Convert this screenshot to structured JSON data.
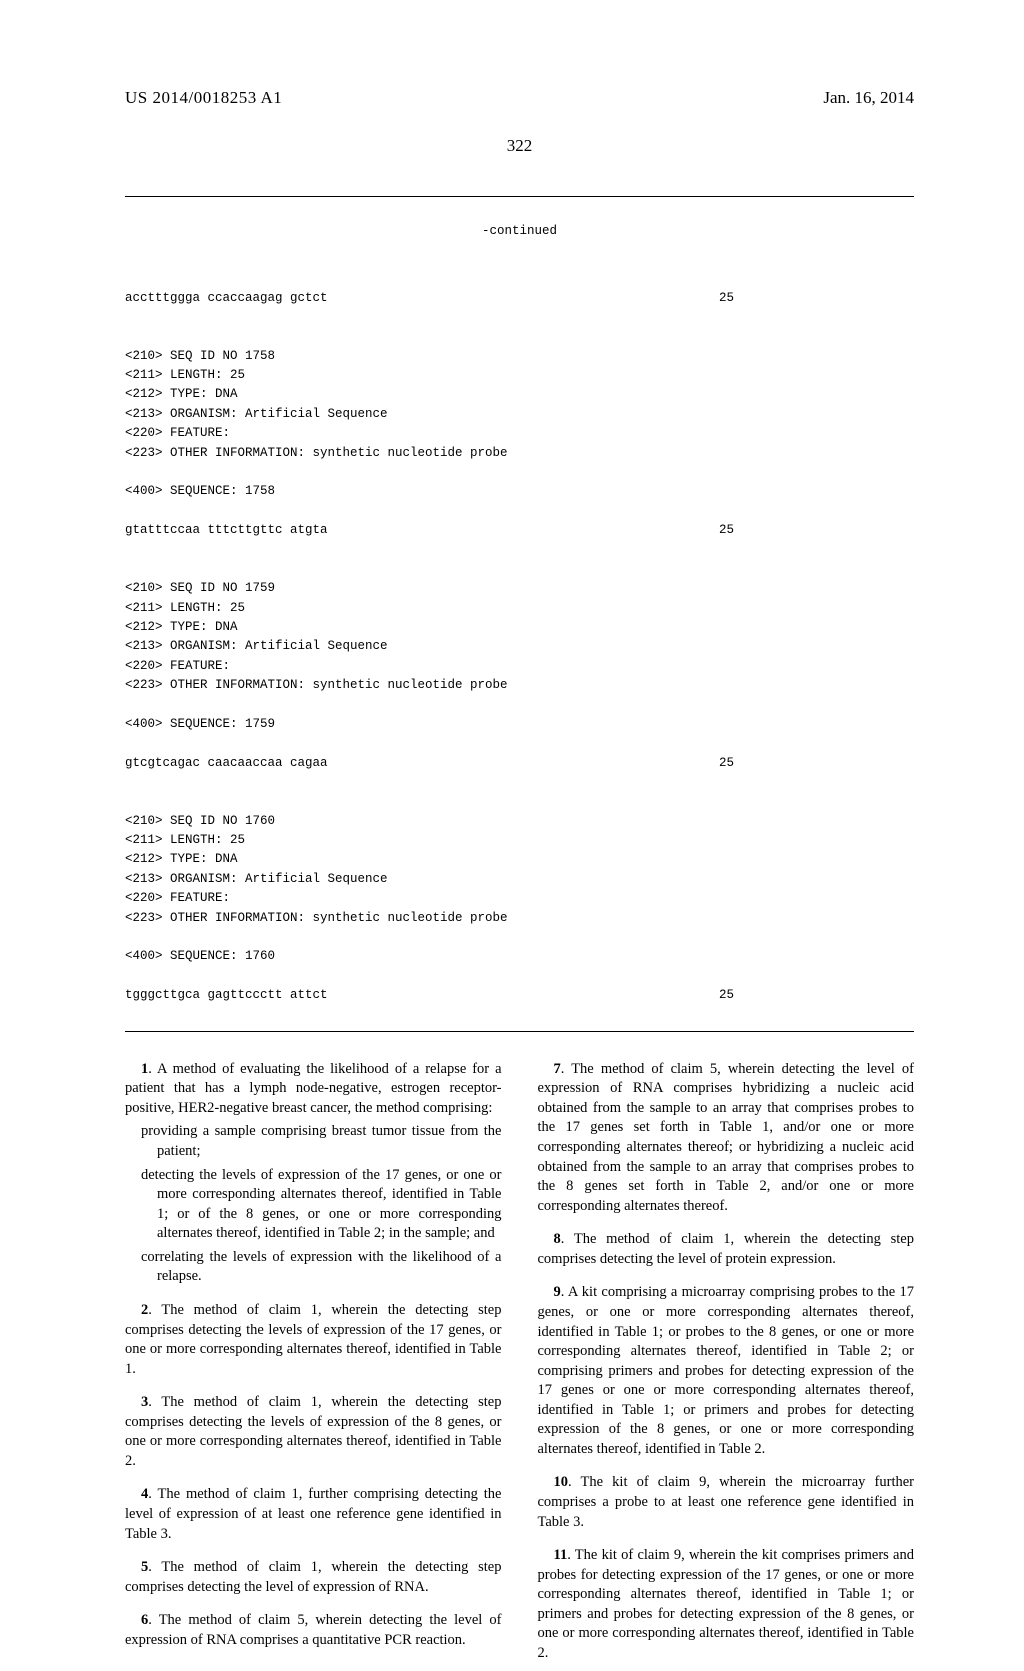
{
  "header": {
    "pub_number": "US 2014/0018253 A1",
    "date": "Jan. 16, 2014"
  },
  "page_number": "322",
  "seq": {
    "continued_label": "-continued",
    "blocks": [
      {
        "pre_seq": "acctttggga ccaccaagag gctct",
        "pre_len": "25",
        "lines": [
          "<210> SEQ ID NO 1758",
          "<211> LENGTH: 25",
          "<212> TYPE: DNA",
          "<213> ORGANISM: Artificial Sequence",
          "<220> FEATURE:",
          "<223> OTHER INFORMATION: synthetic nucleotide probe",
          "",
          "<400> SEQUENCE: 1758"
        ],
        "seq": "gtatttccaa tttcttgttc atgta",
        "len": "25"
      },
      {
        "lines": [
          "<210> SEQ ID NO 1759",
          "<211> LENGTH: 25",
          "<212> TYPE: DNA",
          "<213> ORGANISM: Artificial Sequence",
          "<220> FEATURE:",
          "<223> OTHER INFORMATION: synthetic nucleotide probe",
          "",
          "<400> SEQUENCE: 1759"
        ],
        "seq": "gtcgtcagac caacaaccaa cagaa",
        "len": "25"
      },
      {
        "lines": [
          "<210> SEQ ID NO 1760",
          "<211> LENGTH: 25",
          "<212> TYPE: DNA",
          "<213> ORGANISM: Artificial Sequence",
          "<220> FEATURE:",
          "<223> OTHER INFORMATION: synthetic nucleotide probe",
          "",
          "<400> SEQUENCE: 1760"
        ],
        "seq": "tgggcttgca gagttccctt attct",
        "len": "25"
      }
    ]
  },
  "claims": [
    {
      "num": "1",
      "text": ". A method of evaluating the likelihood of a relapse for a patient that has a lymph node-negative, estrogen receptor-positive, HER2-negative breast cancer, the method comprising:",
      "subs": [
        "providing a sample comprising breast tumor tissue from the patient;",
        "detecting the levels of expression of the 17 genes, or one or more corresponding alternates thereof, identified in Table 1; or of the 8 genes, or one or more corresponding alternates thereof, identified in Table 2; in the sample; and",
        "correlating the levels of expression with the likelihood of a relapse."
      ]
    },
    {
      "num": "2",
      "text": ". The method of claim 1, wherein the detecting step comprises detecting the levels of expression of the 17 genes, or one or more corresponding alternates thereof, identified in Table 1."
    },
    {
      "num": "3",
      "text": ". The method of claim 1, wherein the detecting step comprises detecting the levels of expression of the 8 genes, or one or more corresponding alternates thereof, identified in Table 2."
    },
    {
      "num": "4",
      "text": ". The method of claim 1, further comprising detecting the level of expression of at least one reference gene identified in Table 3."
    },
    {
      "num": "5",
      "text": ". The method of claim 1, wherein the detecting step comprises detecting the level of expression of RNA."
    },
    {
      "num": "6",
      "text": ". The method of claim 5, wherein detecting the level of expression of RNA comprises a quantitative PCR reaction."
    },
    {
      "num": "7",
      "text": ". The method of claim 5, wherein detecting the level of expression of RNA comprises hybridizing a nucleic acid obtained from the sample to an array that comprises probes to the 17 genes set forth in Table 1, and/or one or more corresponding alternates thereof; or hybridizing a nucleic acid obtained from the sample to an array that comprises probes to the 8 genes set forth in Table 2, and/or one or more corresponding alternates thereof."
    },
    {
      "num": "8",
      "text": ". The method of claim 1, wherein the detecting step comprises detecting the level of protein expression."
    },
    {
      "num": "9",
      "text": ". A kit comprising a microarray comprising probes to the 17 genes, or one or more corresponding alternates thereof, identified in Table 1; or probes to the 8 genes, or one or more corresponding alternates thereof, identified in Table 2; or comprising primers and probes for detecting expression of the 17 genes or one or more corresponding alternates thereof, identified in Table 1; or primers and probes for detecting expression of the 8 genes, or one or more corresponding alternates thereof, identified in Table 2."
    },
    {
      "num": "10",
      "text": ". The kit of claim 9, wherein the microarray further comprises a probe to at least one reference gene identified in Table 3."
    },
    {
      "num": "11",
      "text": ". The kit of claim 9, wherein the kit comprises primers and probes for detecting expression of the 17 genes, or one or more corresponding alternates thereof, identified in Table 1; or primers and probes for detecting expression of the 8 genes, or one or more corresponding alternates thereof, identified in Table 2."
    }
  ]
}
